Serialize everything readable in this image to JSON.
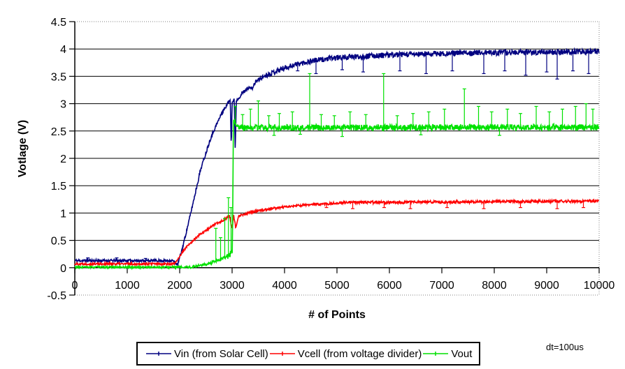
{
  "chart_data": {
    "type": "line",
    "title": "",
    "xlabel": "# of Points",
    "ylabel": "Votlage (V)",
    "annotation": "dt=100us",
    "xlim": [
      0,
      10000
    ],
    "ylim": [
      -0.5,
      4.5
    ],
    "x_ticks": [
      "0",
      "1000",
      "2000",
      "3000",
      "4000",
      "5000",
      "6000",
      "7000",
      "8000",
      "9000",
      "10000"
    ],
    "y_ticks": [
      "-0.5",
      "0",
      "0.5",
      "1",
      "1.5",
      "2",
      "2.5",
      "3",
      "3.5",
      "4",
      "4.5"
    ],
    "grid": "horizontal-major-solid-black, outer-border-dotted-gray",
    "legend_position": "bottom",
    "axis_color": "#000000",
    "border_dotted_color": "#808080",
    "series": [
      {
        "name": "Vin (from Solar Cell)",
        "color": "#000080",
        "seed": 11,
        "segments": [
          [
            0,
            1870,
            0.13,
            0.13,
            0.025
          ],
          [
            1870,
            1960,
            0.13,
            0.05,
            0.02
          ],
          [
            1960,
            2050,
            0.05,
            0.35,
            0.03
          ],
          [
            2050,
            2200,
            0.35,
            0.95,
            0.03
          ],
          [
            2200,
            2400,
            0.95,
            1.8,
            0.035
          ],
          [
            2400,
            2600,
            1.8,
            2.4,
            0.035
          ],
          [
            2600,
            2800,
            2.4,
            2.82,
            0.03
          ],
          [
            2800,
            2965,
            2.82,
            3.08,
            0.03
          ],
          [
            2965,
            2985,
            3.08,
            2.2,
            0.02
          ],
          [
            2985,
            3000,
            2.2,
            3.02,
            0.02
          ],
          [
            3000,
            3040,
            3.02,
            3.08,
            0.025
          ],
          [
            3040,
            3060,
            3.08,
            2.15,
            0.02
          ],
          [
            3060,
            3080,
            2.15,
            3.05,
            0.02
          ],
          [
            3080,
            3200,
            3.05,
            3.2,
            0.03
          ],
          [
            3200,
            3320,
            3.2,
            3.3,
            0.03
          ],
          [
            3320,
            3380,
            3.3,
            3.27,
            0.03
          ],
          [
            3380,
            3450,
            3.27,
            3.4,
            0.03
          ],
          [
            3450,
            3600,
            3.4,
            3.5,
            0.04
          ],
          [
            3600,
            3850,
            3.5,
            3.6,
            0.045
          ],
          [
            3850,
            4150,
            3.6,
            3.7,
            0.05
          ],
          [
            4150,
            4500,
            3.7,
            3.78,
            0.05
          ],
          [
            4500,
            5000,
            3.78,
            3.84,
            0.05
          ],
          [
            5000,
            6000,
            3.84,
            3.89,
            0.05
          ],
          [
            6000,
            7500,
            3.89,
            3.93,
            0.05
          ],
          [
            7500,
            10000,
            3.93,
            3.95,
            0.05
          ]
        ],
        "spikes": [
          [
            250,
            0.18
          ],
          [
            800,
            0.18
          ],
          [
            1350,
            0.17
          ],
          [
            4250,
            3.6
          ],
          [
            4600,
            3.55
          ],
          [
            5100,
            3.62
          ],
          [
            5500,
            3.58
          ],
          [
            6200,
            3.6
          ],
          [
            6700,
            3.55
          ],
          [
            7200,
            3.6
          ],
          [
            7800,
            3.55
          ],
          [
            8200,
            3.6
          ],
          [
            8600,
            3.52
          ],
          [
            9000,
            3.58
          ],
          [
            9200,
            3.45
          ],
          [
            9500,
            3.6
          ],
          [
            9800,
            3.55
          ]
        ]
      },
      {
        "name": "Vcell (from voltage divider)",
        "color": "#FF0000",
        "seed": 22,
        "segments": [
          [
            0,
            1900,
            0.07,
            0.07,
            0.02
          ],
          [
            1900,
            2100,
            0.07,
            0.35,
            0.02
          ],
          [
            2100,
            2350,
            0.35,
            0.58,
            0.02
          ],
          [
            2350,
            2600,
            0.58,
            0.75,
            0.02
          ],
          [
            2600,
            2850,
            0.75,
            0.88,
            0.02
          ],
          [
            2850,
            2950,
            0.88,
            0.95,
            0.03
          ],
          [
            2950,
            3000,
            0.95,
            0.7,
            0.04
          ],
          [
            3000,
            3030,
            0.7,
            0.95,
            0.03
          ],
          [
            3030,
            3070,
            0.95,
            0.73,
            0.03
          ],
          [
            3070,
            3120,
            0.73,
            0.95,
            0.02
          ],
          [
            3120,
            3400,
            0.95,
            1.02,
            0.02
          ],
          [
            3400,
            3800,
            1.02,
            1.09,
            0.02
          ],
          [
            3800,
            4300,
            1.09,
            1.14,
            0.02
          ],
          [
            4300,
            5000,
            1.14,
            1.18,
            0.02
          ],
          [
            5000,
            10000,
            1.19,
            1.22,
            0.025
          ]
        ],
        "spikes": [
          [
            4800,
            1.1
          ],
          [
            5300,
            1.08
          ],
          [
            5900,
            1.1
          ],
          [
            6400,
            1.08
          ],
          [
            7100,
            1.1
          ],
          [
            7800,
            1.08
          ],
          [
            8500,
            1.1
          ],
          [
            9200,
            1.08
          ],
          [
            9700,
            1.1
          ]
        ]
      },
      {
        "name": "Vout",
        "color": "#00E100",
        "seed": 33,
        "segments": [
          [
            0,
            2250,
            0.01,
            0.01,
            0.018
          ],
          [
            2250,
            2600,
            0.02,
            0.08,
            0.02
          ],
          [
            2600,
            2900,
            0.08,
            0.2,
            0.03
          ],
          [
            2900,
            3005,
            0.2,
            0.27,
            0.05
          ],
          [
            3005,
            3025,
            0.27,
            2.68,
            0.04
          ],
          [
            3025,
            3120,
            2.7,
            2.58,
            0.06
          ],
          [
            3120,
            10000,
            2.56,
            2.57,
            0.055
          ]
        ],
        "spikes": [
          [
            2690,
            0.72
          ],
          [
            2780,
            0.55
          ],
          [
            2860,
            0.9
          ],
          [
            2930,
            1.28
          ],
          [
            2980,
            1.1
          ],
          [
            3060,
            2.95
          ],
          [
            3200,
            2.8
          ],
          [
            3350,
            2.9
          ],
          [
            3500,
            3.05
          ],
          [
            3700,
            2.78
          ],
          [
            3800,
            2.42
          ],
          [
            3900,
            2.82
          ],
          [
            4150,
            2.85
          ],
          [
            4300,
            2.44
          ],
          [
            4480,
            3.55
          ],
          [
            4700,
            2.8
          ],
          [
            4950,
            2.78
          ],
          [
            5100,
            2.4
          ],
          [
            5250,
            2.85
          ],
          [
            5550,
            2.8
          ],
          [
            5890,
            3.55
          ],
          [
            6150,
            2.78
          ],
          [
            6450,
            2.82
          ],
          [
            6600,
            2.43
          ],
          [
            6750,
            2.85
          ],
          [
            7050,
            2.9
          ],
          [
            7430,
            3.27
          ],
          [
            7700,
            2.95
          ],
          [
            7950,
            2.85
          ],
          [
            8100,
            2.42
          ],
          [
            8250,
            2.9
          ],
          [
            8500,
            2.82
          ],
          [
            8800,
            2.95
          ],
          [
            9050,
            2.85
          ],
          [
            9300,
            2.9
          ],
          [
            9550,
            2.95
          ],
          [
            9750,
            3.0
          ],
          [
            9880,
            2.9
          ]
        ]
      }
    ]
  }
}
